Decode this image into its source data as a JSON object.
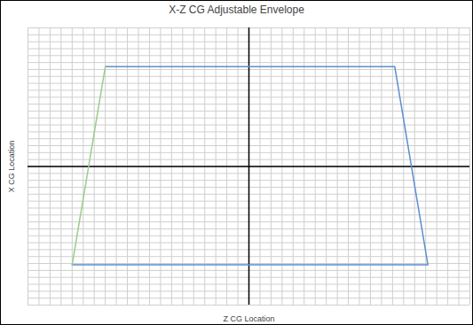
{
  "chart_data": {
    "type": "line",
    "title": "X-Z CG Adjustable Envelope",
    "xlabel": "Z CG Location",
    "ylabel": "X CG Location",
    "xlim": [
      -10,
      10
    ],
    "ylim": [
      -10,
      10
    ],
    "xticks": [
      -10,
      -9.5,
      -9,
      -8.5,
      -8,
      -7.5,
      -7,
      -6.5,
      -6,
      -5.5,
      -5,
      -4.5,
      -4,
      -3.5,
      -3,
      -2.5,
      -2,
      -1.5,
      -1,
      -0.5,
      0,
      0.5,
      1,
      1.5,
      2,
      2.5,
      3,
      3.5,
      4,
      4.5,
      5,
      5.5,
      6,
      6.5,
      7,
      7.5,
      8,
      8.5,
      9,
      9.5,
      10
    ],
    "yticks": [
      -10,
      -9.5,
      -9,
      -8.5,
      -8,
      -7.5,
      -7,
      -6.5,
      -6,
      -5.5,
      -5,
      -4.5,
      -4,
      -3.5,
      -3,
      -2.5,
      -2,
      -1.5,
      -1,
      -0.5,
      0,
      0.5,
      1,
      1.5,
      2,
      2.5,
      3,
      3.5,
      4,
      4.5,
      5,
      5.5,
      6,
      6.5,
      7,
      7.5,
      8,
      8.5,
      9,
      9.5,
      10
    ],
    "grid": true,
    "tick_labels": false,
    "series": [
      {
        "color": "#5b8fd0",
        "x": [
          -6.5,
          6.6,
          8.1,
          -8.0
        ],
        "values": [
          7.2,
          7.2,
          -7.1,
          -7.1
        ]
      },
      {
        "color": "#9ccc8a",
        "x": [
          -8.0,
          -6.5
        ],
        "values": [
          -7.1,
          7.2
        ]
      }
    ]
  }
}
